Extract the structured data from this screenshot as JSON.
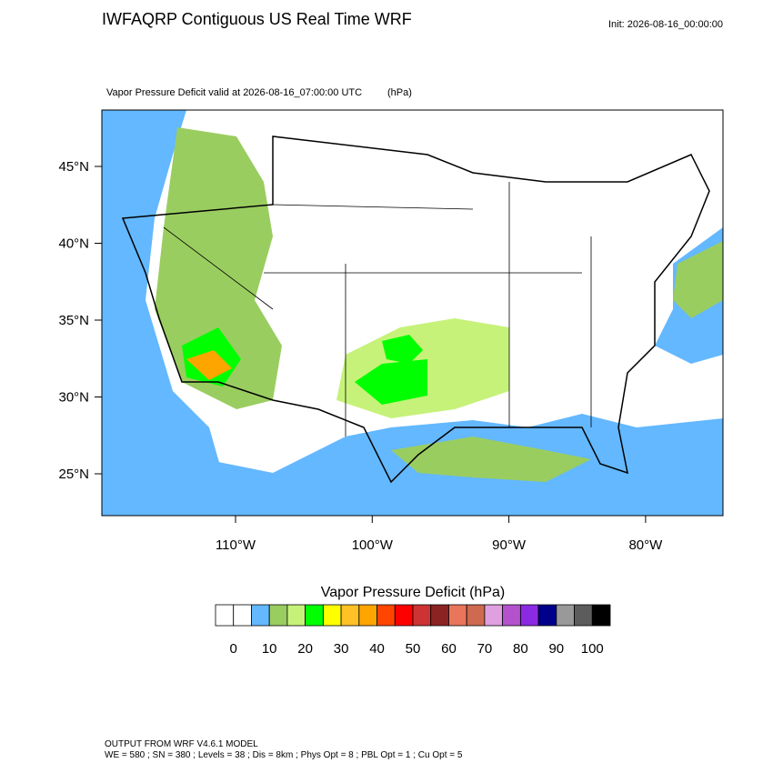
{
  "header": {
    "title": "IWFAQRP Contiguous US Real Time WRF",
    "init": "Init: 2026-08-16_00:00:00"
  },
  "map": {
    "subtitle": "Vapor Pressure Deficit valid at 2026-08-16_07:00:00 UTC",
    "units": "(hPa)",
    "lat_labels": [
      "45°N",
      "40°N",
      "35°N",
      "30°N",
      "25°N"
    ],
    "lon_labels": [
      "110°W",
      "100°W",
      "90°W",
      "80°W"
    ]
  },
  "colorbar": {
    "title": "Vapor Pressure Deficit  (hPa)",
    "colors": [
      "#ffffff",
      "#ffffff",
      "#63b8ff",
      "#9acd60",
      "#c6f27a",
      "#00ff00",
      "#ffff00",
      "#ffc125",
      "#ffa500",
      "#ff4500",
      "#ff0000",
      "#cd3333",
      "#8b2323",
      "#e9765a",
      "#cd6a50",
      "#e0a0e0",
      "#b452cd",
      "#8a2be2",
      "#00008b",
      "#999999",
      "#5c5c5c",
      "#000000"
    ],
    "labels": [
      "0",
      "10",
      "20",
      "30",
      "40",
      "50",
      "60",
      "70",
      "80",
      "90",
      "100"
    ]
  },
  "footer": {
    "line1": "OUTPUT FROM WRF V4.6.1 MODEL",
    "line2": "WE = 580 ; SN = 380 ; Levels = 38 ; Dis = 8km ; Phys Opt = 8 ; PBL Opt = 1 ; Cu Opt = 5"
  }
}
